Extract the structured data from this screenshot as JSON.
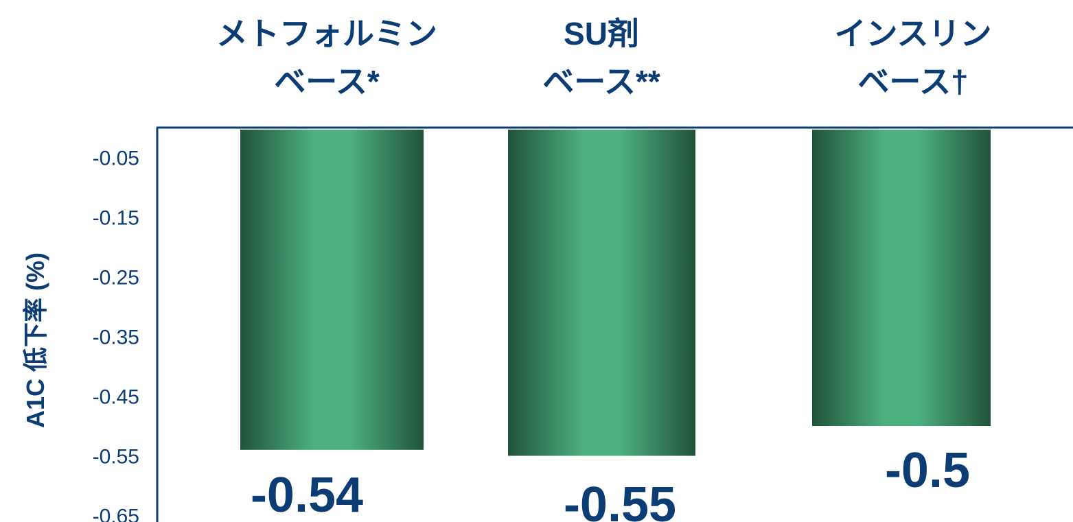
{
  "chart_data": {
    "type": "bar",
    "title": "",
    "xlabel": "",
    "ylabel": "A1C 低下率 (%)",
    "categories": [
      [
        "メトフォルミン",
        "ベース*"
      ],
      [
        "SU剤",
        "ベース**"
      ],
      [
        "インスリン",
        "ベース†"
      ]
    ],
    "values": [
      -0.54,
      -0.55,
      -0.5
    ],
    "data_labels": [
      "-0.54",
      "-0.55",
      "-0.5"
    ],
    "yticks": [
      "-0.05",
      "-0.15",
      "-0.25",
      "-0.35",
      "-0.45",
      "-0.55",
      "-0.65"
    ],
    "ylim": [
      0,
      -0.65
    ],
    "grid": false,
    "legend": "none"
  },
  "colors": {
    "axis": "#0b3c73",
    "text": "#0b3c73",
    "bar_light": "#4caf80",
    "bar_dark": "#21533a"
  }
}
